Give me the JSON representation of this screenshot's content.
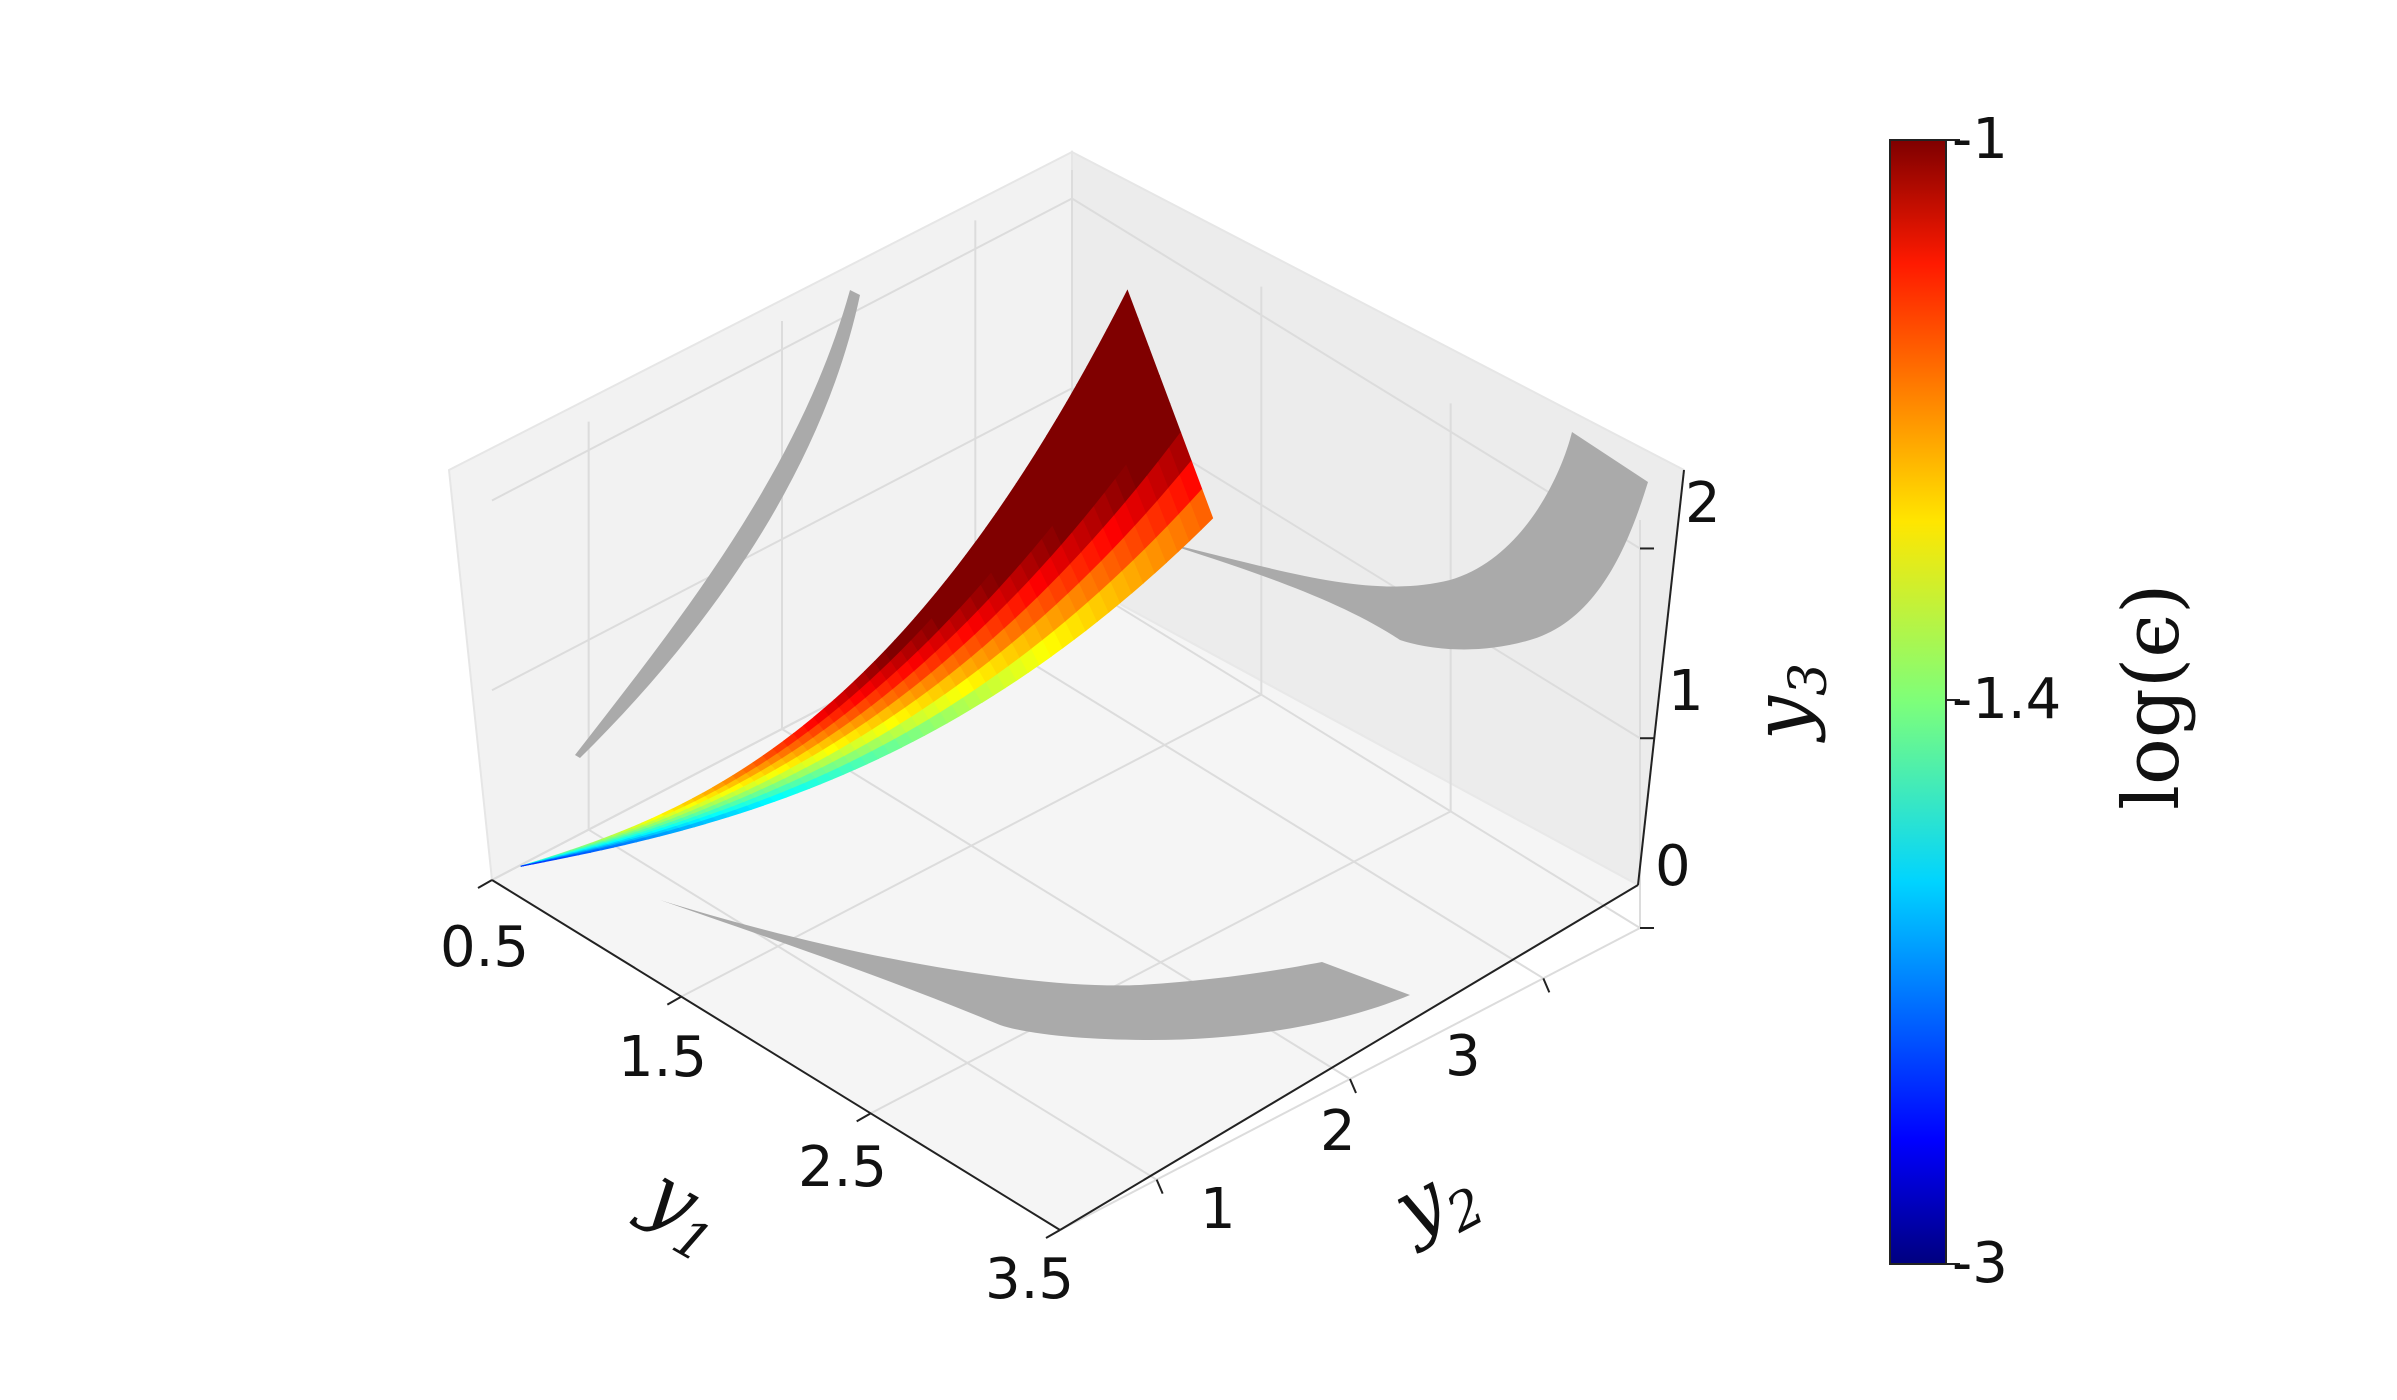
{
  "chart_data": {
    "type": "surface3d",
    "title": "",
    "axes": {
      "x": {
        "label": "y",
        "subscript": "1",
        "ticks": [
          "0.5",
          "1.5",
          "2.5",
          "3.5"
        ],
        "range": [
          0.5,
          3.5
        ]
      },
      "y": {
        "label": "y",
        "subscript": "2",
        "ticks": [
          "1",
          "2",
          "3"
        ],
        "range": [
          0.5,
          3.5
        ]
      },
      "z": {
        "label": "y",
        "subscript": "3",
        "ticks": [
          "0",
          "1",
          "2"
        ],
        "range": [
          0,
          2
        ]
      }
    },
    "colorbar": {
      "label": "log(ϵ)",
      "ticks": [
        "-3",
        "-1.4",
        "-1"
      ],
      "tick_values": [
        -3,
        -1.4,
        -1
      ],
      "range": [
        -3,
        -1
      ],
      "colormap": "jet"
    },
    "surface": {
      "description_values": "y1 ranges 0.5 to about 1.6, y2 from about 0.5 to 3.2, y3 from 0 to about 2.1",
      "y1_range": [
        0.5,
        1.6
      ],
      "y2_range": [
        0.5,
        3.2
      ],
      "y3_range": [
        0,
        2.1
      ]
    },
    "projections": {
      "color": "#aaaaaa",
      "on_planes": [
        "y1=0.5 wall",
        "y2=3.5 wall",
        "y3=0 floor"
      ]
    },
    "grid": true,
    "pane_color": "#f2f2f2"
  }
}
